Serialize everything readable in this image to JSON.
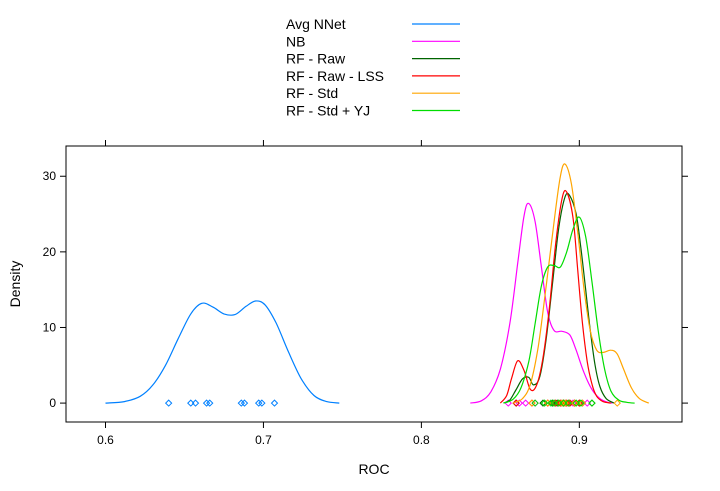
{
  "chart_data": {
    "type": "line",
    "subtype": "density",
    "title": "",
    "xlabel": "ROC",
    "ylabel": "Density",
    "xlim": [
      0.575,
      0.965
    ],
    "ylim": [
      -2.5,
      34.0
    ],
    "xticks": [
      0.6,
      0.7,
      0.8,
      0.9
    ],
    "xtick_labels": [
      "0.6",
      "0.7",
      "0.8",
      "0.9"
    ],
    "yticks": [
      0,
      10,
      20,
      30
    ],
    "ytick_labels": [
      "0",
      "10",
      "20",
      "30"
    ],
    "grid": false,
    "legend_position": "top",
    "series": [
      {
        "name": "Avg NNet",
        "color": "#0080ff",
        "density": [
          [
            0.6,
            0.0
          ],
          [
            0.612,
            0.2
          ],
          [
            0.622,
            0.9
          ],
          [
            0.63,
            2.4
          ],
          [
            0.638,
            5.0
          ],
          [
            0.646,
            8.5
          ],
          [
            0.654,
            11.8
          ],
          [
            0.661,
            13.2
          ],
          [
            0.668,
            12.7
          ],
          [
            0.675,
            11.8
          ],
          [
            0.682,
            11.7
          ],
          [
            0.689,
            12.8
          ],
          [
            0.695,
            13.5
          ],
          [
            0.701,
            13.0
          ],
          [
            0.708,
            10.6
          ],
          [
            0.716,
            6.7
          ],
          [
            0.724,
            3.2
          ],
          [
            0.732,
            1.0
          ],
          [
            0.74,
            0.2
          ],
          [
            0.748,
            0.0
          ]
        ],
        "rug": [
          0.64,
          0.654,
          0.657,
          0.664,
          0.666,
          0.686,
          0.688,
          0.697,
          0.699,
          0.707
        ]
      },
      {
        "name": "NB",
        "color": "#ff00ff",
        "density": [
          [
            0.831,
            0.0
          ],
          [
            0.838,
            0.3
          ],
          [
            0.844,
            1.5
          ],
          [
            0.85,
            4.5
          ],
          [
            0.856,
            10.5
          ],
          [
            0.861,
            18.5
          ],
          [
            0.865,
            24.8
          ],
          [
            0.868,
            26.4
          ],
          [
            0.872,
            24.0
          ],
          [
            0.876,
            18.0
          ],
          [
            0.88,
            12.0
          ],
          [
            0.884,
            9.6
          ],
          [
            0.889,
            9.5
          ],
          [
            0.894,
            9.0
          ],
          [
            0.898,
            7.0
          ],
          [
            0.903,
            4.0
          ],
          [
            0.908,
            1.8
          ],
          [
            0.913,
            0.6
          ],
          [
            0.918,
            0.1
          ],
          [
            0.921,
            0.0
          ]
        ],
        "rug": [
          0.855,
          0.86,
          0.862,
          0.866,
          0.872,
          0.88,
          0.89,
          0.896,
          0.902,
          0.905
        ]
      },
      {
        "name": "RF - Raw",
        "color": "#006400",
        "density": [
          [
            0.852,
            0.0
          ],
          [
            0.856,
            0.4
          ],
          [
            0.86,
            1.8
          ],
          [
            0.864,
            3.2
          ],
          [
            0.868,
            3.4
          ],
          [
            0.871,
            2.4
          ],
          [
            0.875,
            3.5
          ],
          [
            0.879,
            8.5
          ],
          [
            0.883,
            15.8
          ],
          [
            0.887,
            23.2
          ],
          [
            0.891,
            27.3
          ],
          [
            0.894,
            27.4
          ],
          [
            0.898,
            25.0
          ],
          [
            0.901,
            20.5
          ],
          [
            0.904,
            15.0
          ],
          [
            0.907,
            9.5
          ],
          [
            0.91,
            5.0
          ],
          [
            0.913,
            2.2
          ],
          [
            0.917,
            0.6
          ],
          [
            0.922,
            0.0
          ]
        ],
        "rug": [
          0.86,
          0.877,
          0.883,
          0.886,
          0.889,
          0.891,
          0.894,
          0.897,
          0.9,
          0.908
        ]
      },
      {
        "name": "RF - Raw - LSS",
        "color": "#ff0000",
        "density": [
          [
            0.85,
            0.0
          ],
          [
            0.854,
            1.0
          ],
          [
            0.857,
            3.2
          ],
          [
            0.861,
            5.6
          ],
          [
            0.865,
            4.3
          ],
          [
            0.869,
            1.8
          ],
          [
            0.873,
            2.4
          ],
          [
            0.877,
            6.0
          ],
          [
            0.881,
            12.5
          ],
          [
            0.885,
            21.0
          ],
          [
            0.889,
            27.0
          ],
          [
            0.892,
            27.9
          ],
          [
            0.896,
            24.5
          ],
          [
            0.899,
            17.5
          ],
          [
            0.902,
            10.5
          ],
          [
            0.905,
            5.5
          ],
          [
            0.908,
            2.5
          ],
          [
            0.911,
            0.9
          ],
          [
            0.915,
            0.2
          ],
          [
            0.92,
            0.0
          ]
        ],
        "rug": [
          0.86,
          0.87,
          0.88,
          0.885,
          0.888,
          0.89,
          0.892,
          0.894,
          0.897,
          0.9
        ]
      },
      {
        "name": "RF - Std",
        "color": "#ffa500",
        "density": [
          [
            0.858,
            0.0
          ],
          [
            0.864,
            0.6
          ],
          [
            0.869,
            2.5
          ],
          [
            0.874,
            7.5
          ],
          [
            0.879,
            15.5
          ],
          [
            0.884,
            24.0
          ],
          [
            0.888,
            30.0
          ],
          [
            0.891,
            31.6
          ],
          [
            0.895,
            29.0
          ],
          [
            0.899,
            22.5
          ],
          [
            0.903,
            15.0
          ],
          [
            0.907,
            9.5
          ],
          [
            0.911,
            7.0
          ],
          [
            0.915,
            6.7
          ],
          [
            0.92,
            7.0
          ],
          [
            0.924,
            6.5
          ],
          [
            0.928,
            4.5
          ],
          [
            0.933,
            2.0
          ],
          [
            0.938,
            0.6
          ],
          [
            0.944,
            0.0
          ]
        ],
        "rug": [
          0.87,
          0.88,
          0.884,
          0.887,
          0.889,
          0.891,
          0.893,
          0.897,
          0.902,
          0.924
        ]
      },
      {
        "name": "RF - Std + YJ",
        "color": "#00dd00",
        "density": [
          [
            0.852,
            0.0
          ],
          [
            0.858,
            0.5
          ],
          [
            0.863,
            2.0
          ],
          [
            0.868,
            5.5
          ],
          [
            0.872,
            10.5
          ],
          [
            0.876,
            15.5
          ],
          [
            0.88,
            18.0
          ],
          [
            0.884,
            18.2
          ],
          [
            0.888,
            18.0
          ],
          [
            0.892,
            20.0
          ],
          [
            0.896,
            23.0
          ],
          [
            0.9,
            24.6
          ],
          [
            0.904,
            22.0
          ],
          [
            0.908,
            16.0
          ],
          [
            0.912,
            9.5
          ],
          [
            0.916,
            4.5
          ],
          [
            0.92,
            1.6
          ],
          [
            0.925,
            0.4
          ],
          [
            0.93,
            0.1
          ],
          [
            0.935,
            0.0
          ]
        ],
        "rug": [
          0.872,
          0.878,
          0.882,
          0.884,
          0.887,
          0.89,
          0.893,
          0.898,
          0.901,
          0.908
        ]
      }
    ]
  }
}
